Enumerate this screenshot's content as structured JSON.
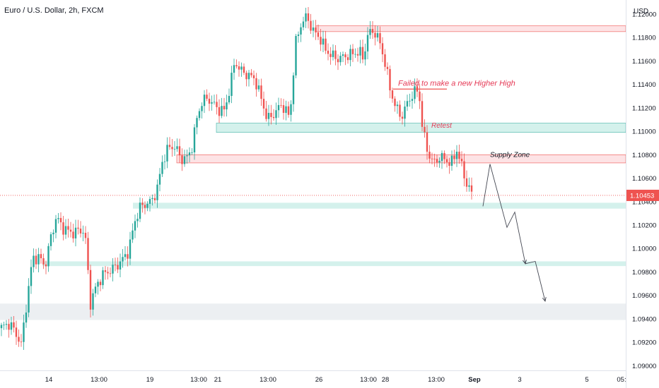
{
  "header": {
    "title": "Euro / U.S. Dollar, 2h, FXCM",
    "currency": "USD"
  },
  "colors": {
    "up": "#26a69a",
    "down": "#ef5350",
    "resistance_fill": "#fde3e5",
    "resistance_stroke": "#ef5350",
    "support_fill": "#d4f1ec",
    "demand_fill": "#eceff2",
    "annotation_text": "#e53955",
    "price_tag": "#ef5350"
  },
  "chart_data": {
    "type": "candlestick",
    "symbol": "Euro / U.S. Dollar",
    "timeframe": "2h",
    "source": "FXCM",
    "ylim": [
      1.0896,
      1.1212
    ],
    "y_ticks": [
      "1.12000",
      "1.11800",
      "1.11600",
      "1.11400",
      "1.11200",
      "1.11000",
      "1.10800",
      "1.10600",
      "1.10400",
      "1.10200",
      "1.10000",
      "1.09800",
      "1.09600",
      "1.09400",
      "1.09200",
      "1.09000"
    ],
    "x_ticks": [
      "14",
      "13:00",
      "19",
      "13:00",
      "21",
      "13:00",
      "26",
      "13:00",
      "28",
      "13:00",
      "Sep",
      "3",
      "5",
      "05:"
    ],
    "last_price": "1.10453",
    "last_price_value": 1.10453,
    "price_path": [
      [
        0,
        1.0932
      ],
      [
        14,
        1.0936
      ],
      [
        22,
        1.0928
      ],
      [
        30,
        1.0918
      ],
      [
        38,
        1.0955
      ],
      [
        46,
        1.0992
      ],
      [
        56,
        1.0992
      ],
      [
        64,
        1.0985
      ],
      [
        72,
        1.101
      ],
      [
        80,
        1.1027
      ],
      [
        88,
        1.1018
      ],
      [
        96,
        1.1015
      ],
      [
        104,
        1.1013
      ],
      [
        112,
        1.1016
      ],
      [
        120,
        1.1014
      ],
      [
        128,
        1.0953
      ],
      [
        136,
        1.0968
      ],
      [
        146,
        1.0978
      ],
      [
        158,
        1.0982
      ],
      [
        170,
        1.0988
      ],
      [
        182,
        1.0998
      ],
      [
        190,
        1.1022
      ],
      [
        198,
        1.1035
      ],
      [
        206,
        1.1038
      ],
      [
        214,
        1.104
      ],
      [
        222,
        1.105
      ],
      [
        230,
        1.1075
      ],
      [
        238,
        1.1086
      ],
      [
        248,
        1.1087
      ],
      [
        256,
        1.1076
      ],
      [
        266,
        1.1078
      ],
      [
        272,
        1.1088
      ],
      [
        278,
        1.111
      ],
      [
        286,
        1.1126
      ],
      [
        294,
        1.1128
      ],
      [
        302,
        1.1123
      ],
      [
        310,
        1.1118
      ],
      [
        318,
        1.1118
      ],
      [
        326,
        1.114
      ],
      [
        332,
        1.116
      ],
      [
        340,
        1.1152
      ],
      [
        350,
        1.1148
      ],
      [
        360,
        1.1145
      ],
      [
        370,
        1.1127
      ],
      [
        378,
        1.111
      ],
      [
        388,
        1.1115
      ],
      [
        398,
        1.1123
      ],
      [
        410,
        1.1112
      ],
      [
        418,
        1.1175
      ],
      [
        426,
        1.1192
      ],
      [
        434,
        1.1198
      ],
      [
        442,
        1.1186
      ],
      [
        452,
        1.118
      ],
      [
        460,
        1.117
      ],
      [
        468,
        1.1165
      ],
      [
        478,
        1.1162
      ],
      [
        488,
        1.1164
      ],
      [
        498,
        1.1166
      ],
      [
        508,
        1.1168
      ],
      [
        514,
        1.1162
      ],
      [
        520,
        1.1182
      ],
      [
        528,
        1.1186
      ],
      [
        536,
        1.1178
      ],
      [
        544,
        1.116
      ],
      [
        552,
        1.1135
      ],
      [
        560,
        1.112
      ],
      [
        568,
        1.1112
      ],
      [
        576,
        1.1124
      ],
      [
        584,
        1.1132
      ],
      [
        592,
        1.1136
      ],
      [
        598,
        1.11
      ],
      [
        606,
        1.108
      ],
      [
        614,
        1.1073
      ],
      [
        622,
        1.1078
      ],
      [
        630,
        1.1076
      ],
      [
        638,
        1.1072
      ],
      [
        646,
        1.1084
      ],
      [
        654,
        1.1068
      ],
      [
        660,
        1.1055
      ],
      [
        666,
        1.1048
      ],
      [
        670,
        1.10453
      ]
    ],
    "projected_path": [
      [
        683,
        1.1036
      ],
      [
        693,
        1.1072
      ],
      [
        717,
        1.1018
      ],
      [
        728,
        1.1031
      ],
      [
        743,
        1.0987
      ],
      [
        757,
        1.0989
      ],
      [
        771,
        1.0955
      ]
    ],
    "zones": [
      {
        "kind": "resistance",
        "y1": 1.119,
        "y2": 1.1185,
        "x_from": 447
      },
      {
        "kind": "support",
        "y1": 1.1107,
        "y2": 1.1099,
        "x_from": 306
      },
      {
        "kind": "resistance",
        "y1": 1.108,
        "y2": 1.1073,
        "x_from": 250
      },
      {
        "kind": "support",
        "y1": 1.1039,
        "y2": 1.1034,
        "x_from": 188
      },
      {
        "kind": "support",
        "y1": 1.0989,
        "y2": 1.0985,
        "x_from": 60
      },
      {
        "kind": "demand",
        "y1": 1.0953,
        "y2": 1.0939,
        "x_from": 0
      }
    ],
    "levels": [
      {
        "kind": "resistance",
        "y": 1.1136,
        "x_from": 556,
        "x_to": 632
      }
    ],
    "annotations": [
      {
        "text": "Failed to make a new Higher High",
        "price": 1.1139,
        "x": 563,
        "color": "#e53955"
      },
      {
        "text": "Retest",
        "price": 1.1103,
        "x": 610,
        "color": "#e53955"
      },
      {
        "text": "Supply Zone",
        "price": 1.1078,
        "x": 693,
        "color": "#131722"
      }
    ]
  }
}
